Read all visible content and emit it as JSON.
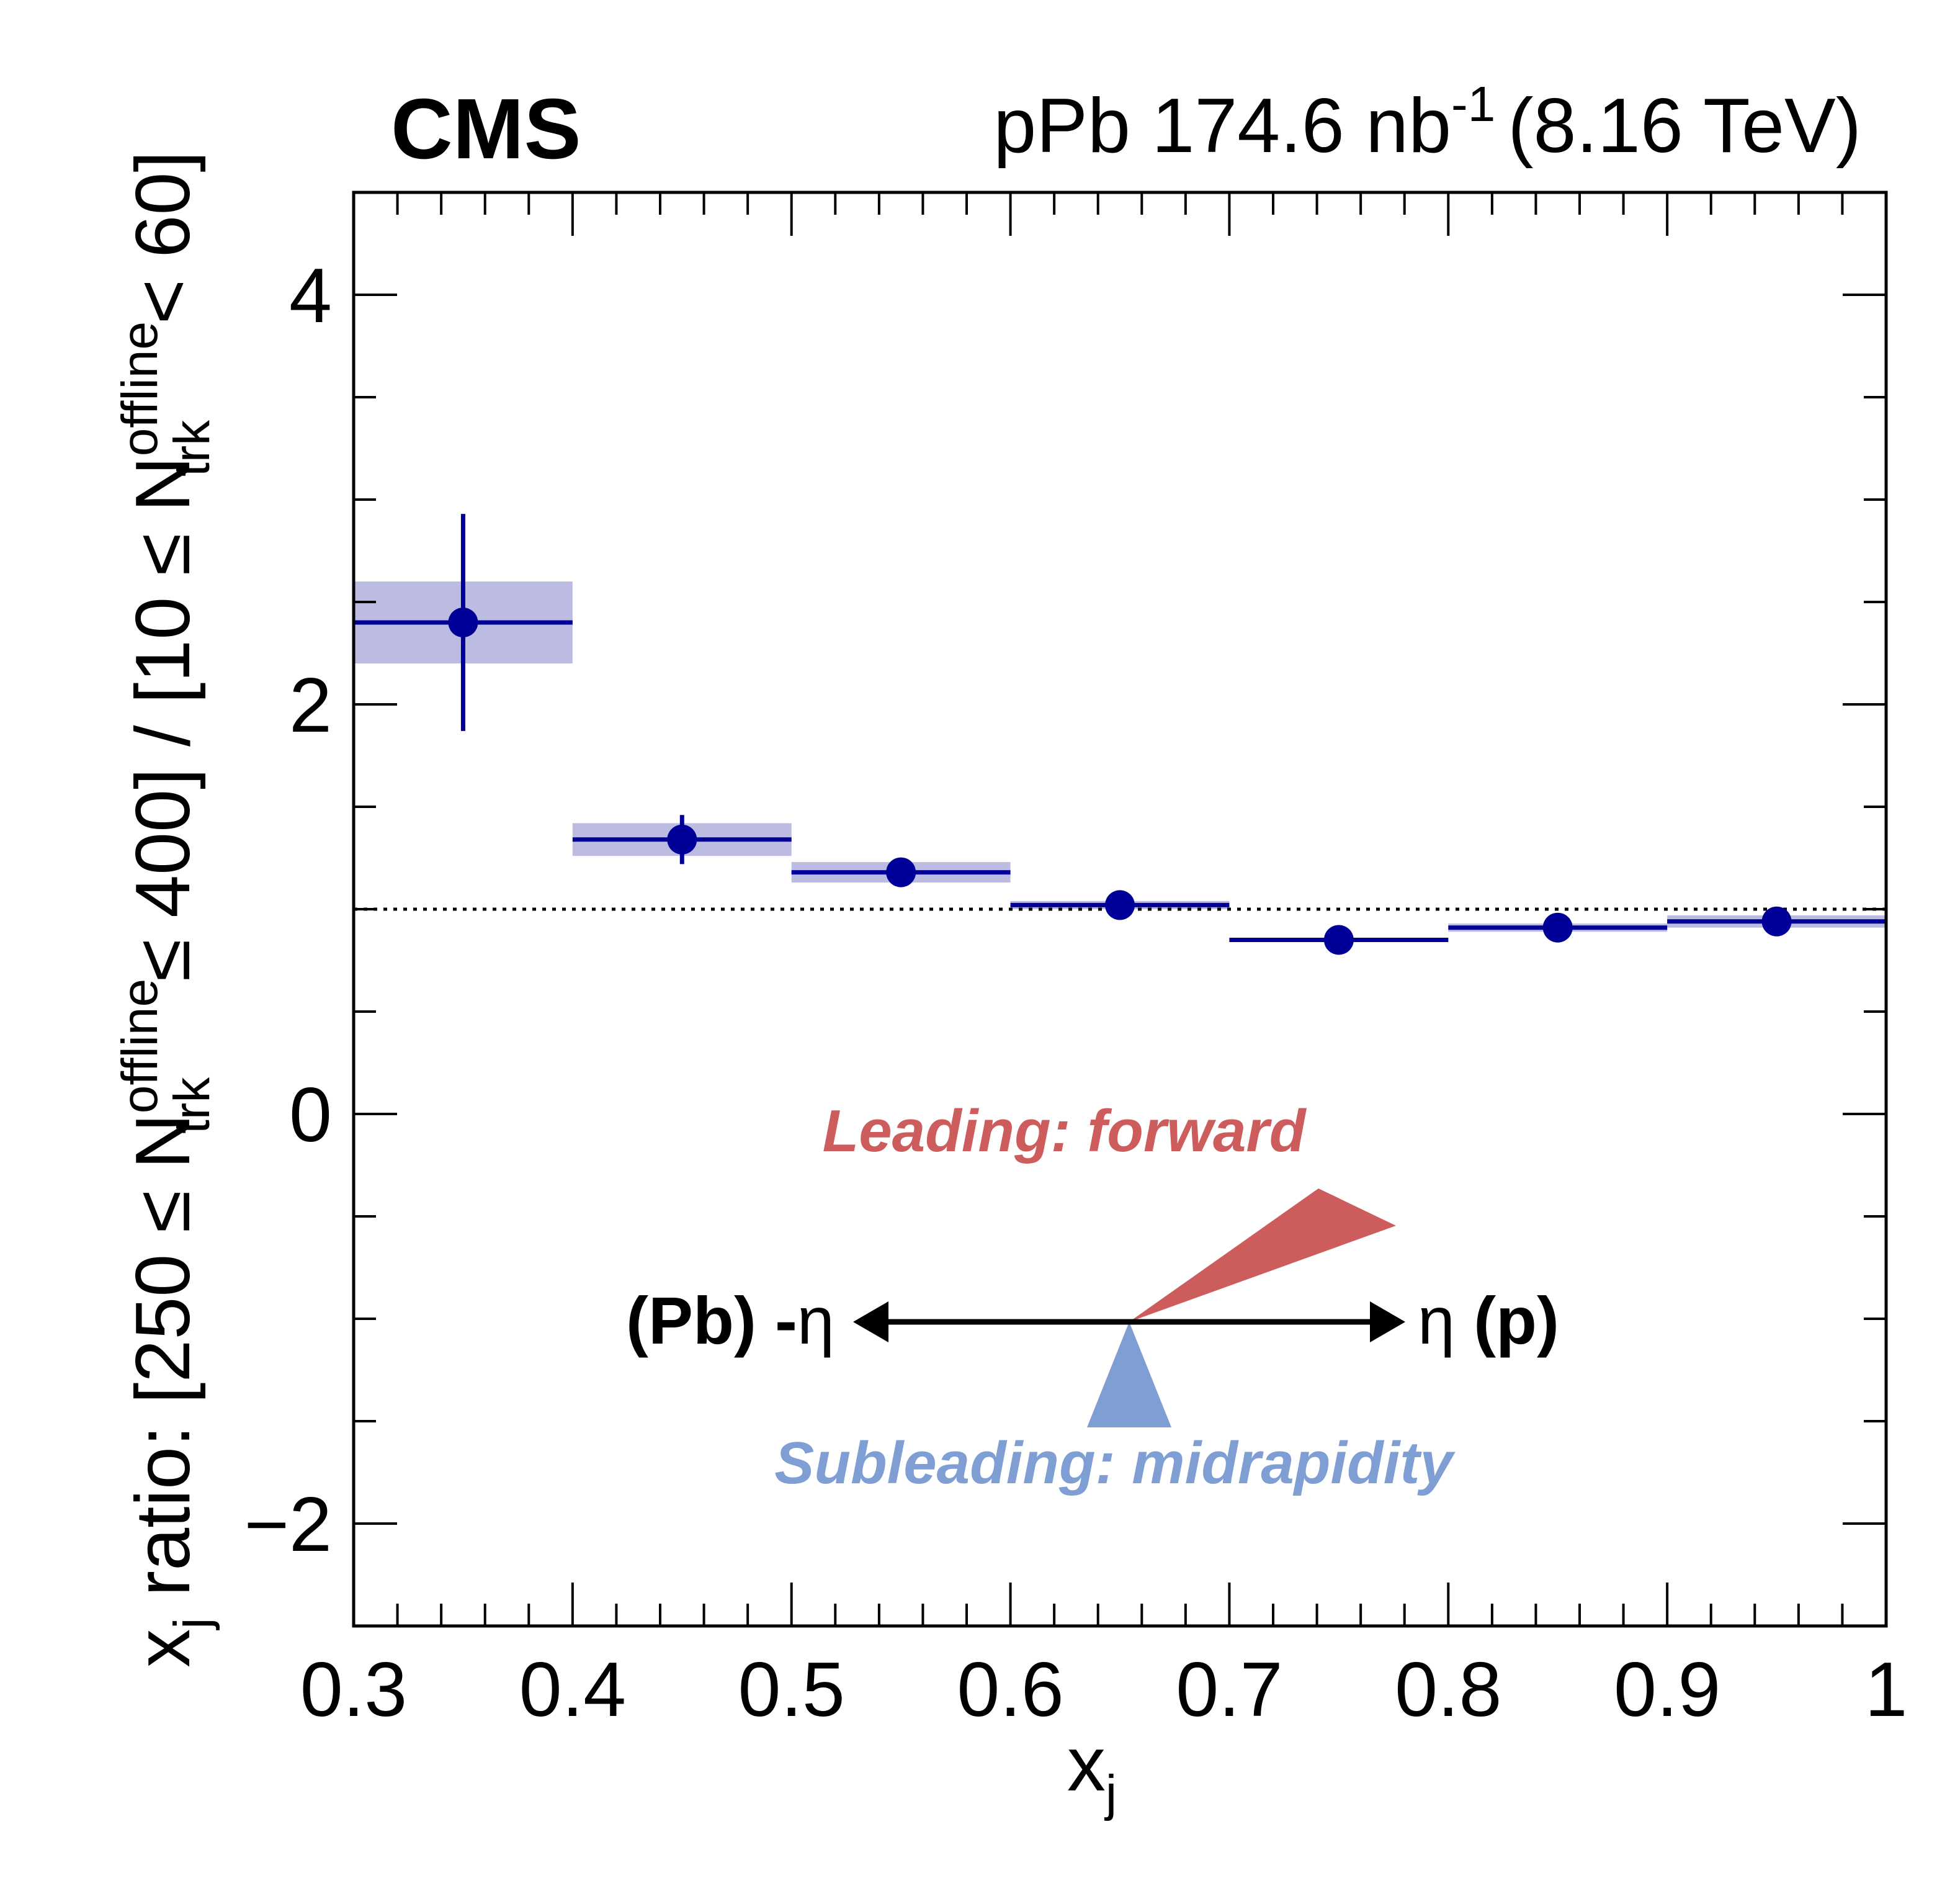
{
  "header": {
    "experiment": "CMS",
    "dataset_prefix": "pPb 174.6 nb",
    "dataset_exponent": "-1",
    "dataset_suffix": "(8.16 TeV)"
  },
  "chart_data": {
    "type": "scatter",
    "xlabel": "x",
    "xlabel_sub": "j",
    "ylabel_parts": {
      "x": "x",
      "x_sub": "j",
      "ratio": " ratio: [250 ≤ N",
      "n_sup1": "offline",
      "n_sub1": "trk",
      "mid": " ≤ 400] / [10 ≤ N",
      "n_sup2": "offline",
      "n_sub2": "trk",
      "end": " < 60]"
    },
    "xlim": [
      0.3,
      1.0
    ],
    "ylim": [
      -2.5,
      4.5
    ],
    "x_ticks": [
      "0.3",
      "0.4",
      "0.5",
      "0.6",
      "0.7",
      "0.8",
      "0.9",
      "1"
    ],
    "y_ticks": [
      "−2",
      "0",
      "2",
      "4"
    ],
    "reference_line": 1.0,
    "series": [
      {
        "points": [
          {
            "x_low": 0.3,
            "x_high": 0.4,
            "y": 2.4,
            "stat_err": 0.53,
            "syst_err": 0.2
          },
          {
            "x_low": 0.4,
            "x_high": 0.5,
            "y": 1.34,
            "stat_err": 0.12,
            "syst_err": 0.08
          },
          {
            "x_low": 0.5,
            "x_high": 0.6,
            "y": 1.18,
            "stat_err": 0.02,
            "syst_err": 0.05
          },
          {
            "x_low": 0.6,
            "x_high": 0.7,
            "y": 1.02,
            "stat_err": 0.02,
            "syst_err": 0.02
          },
          {
            "x_low": 0.7,
            "x_high": 0.8,
            "y": 0.85,
            "stat_err": 0.02,
            "syst_err": 0.01
          },
          {
            "x_low": 0.8,
            "x_high": 0.9,
            "y": 0.91,
            "stat_err": 0.02,
            "syst_err": 0.02
          },
          {
            "x_low": 0.9,
            "x_high": 1.0,
            "y": 0.94,
            "stat_err": 0.02,
            "syst_err": 0.03
          }
        ]
      }
    ],
    "annotations": {
      "leading": "Leading: forward",
      "subleading": "Subleading: midrapidity",
      "left_prefix": "(Pb) -",
      "left_eta": "η",
      "right_eta": "η",
      "right_suffix": " (p)"
    },
    "colors": {
      "marker": "#000099",
      "syst_band": "#bcbce3",
      "leading": "#cd5c5c",
      "subleading": "#7f9ed4",
      "axis": "#000000"
    }
  }
}
